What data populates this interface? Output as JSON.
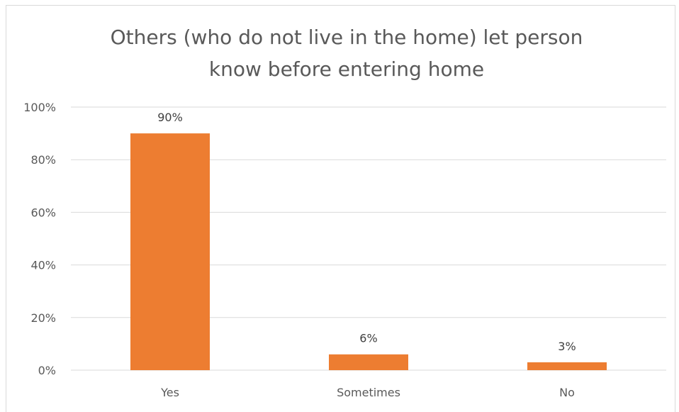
{
  "chart_data": {
    "type": "bar",
    "title_lines": [
      "Others (who do not live in the home) let person",
      "know before entering home"
    ],
    "categories": [
      "Yes",
      "Sometimes",
      "No"
    ],
    "values": [
      90,
      6,
      3
    ],
    "data_labels": [
      "90%",
      "6%",
      "3%"
    ],
    "y_ticks": [
      0,
      20,
      40,
      60,
      80,
      100
    ],
    "y_tick_labels": [
      "0%",
      "20%",
      "40%",
      "60%",
      "80%",
      "100%"
    ],
    "ylim": [
      0,
      100
    ],
    "grid": true,
    "legend": "none",
    "bar_color": "#ED7D31",
    "grid_color": "#d9d9d9",
    "text_color": "#595959"
  }
}
